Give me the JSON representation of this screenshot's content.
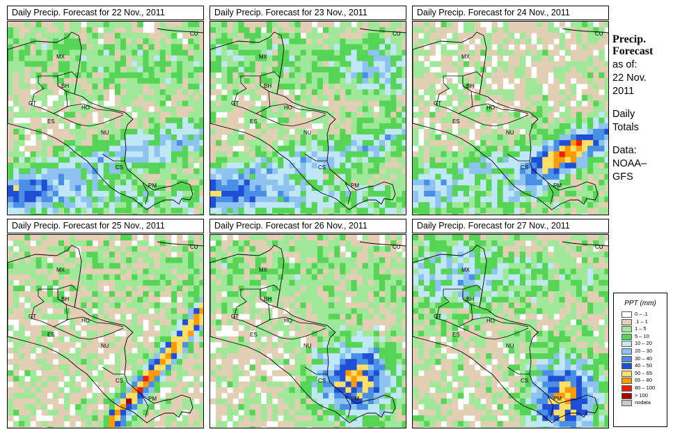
{
  "panels": [
    {
      "title": "Daily Precip. Forecast for  22 Nov., 2011"
    },
    {
      "title": "Daily Precip. Forecast for  23 Nov., 2011"
    },
    {
      "title": "Daily Precip. Forecast for  24 Nov., 2011"
    },
    {
      "title": "Daily Precip. Forecast for  25 Nov., 2011"
    },
    {
      "title": "Daily Precip. Forecast for  26 Nov., 2011"
    },
    {
      "title": "Daily Precip. Forecast for  27 Nov., 2011"
    }
  ],
  "country_labels": [
    "MX",
    "BH",
    "GT",
    "HO",
    "ES",
    "NU",
    "CS",
    "PM",
    "CU"
  ],
  "sidebar": {
    "title_line1": "Precip.",
    "title_line2": "Forecast",
    "asof_line1": "as of:",
    "asof_line2": "22 Nov.",
    "asof_line3": "2011",
    "totals_line1": "Daily",
    "totals_line2": "Totals",
    "data_line1": "Data:",
    "data_line2": "NOAA–",
    "data_line3": "GFS"
  },
  "legend": {
    "title": "PPT (mm)",
    "items": [
      {
        "label": "0 – .1",
        "color": "#ffffff"
      },
      {
        "label": ".1 – 1",
        "color": "#e2cfb3"
      },
      {
        "label": "1 – 5",
        "color": "#9fe89a"
      },
      {
        "label": "5 – 10",
        "color": "#55d455"
      },
      {
        "label": "10 – 20",
        "color": "#bfe7f6"
      },
      {
        "label": "20 – 30",
        "color": "#8ec2f0"
      },
      {
        "label": "30 – 40",
        "color": "#4a8fe6"
      },
      {
        "label": "40 – 50",
        "color": "#1f4fd6"
      },
      {
        "label": "50 – 65",
        "color": "#ffe066"
      },
      {
        "label": "65 – 80",
        "color": "#ff9a00"
      },
      {
        "label": "80 – 100",
        "color": "#e82000"
      },
      {
        "label": "> 100",
        "color": "#a80000"
      },
      {
        "label": "nodata",
        "color": "#c8c8c8"
      }
    ]
  }
}
